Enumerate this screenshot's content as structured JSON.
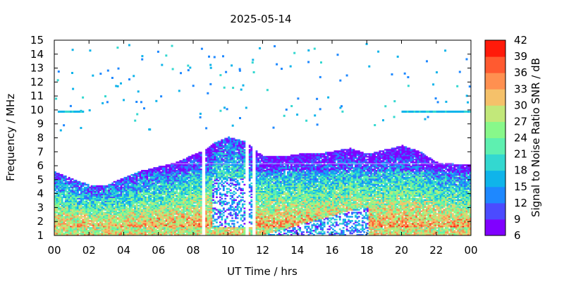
{
  "chart_data": {
    "type": "heatmap",
    "title": "2025-05-14",
    "xlabel": "UT Time / hrs",
    "ylabel": "Frequency / MHz",
    "colorbar_label": "Signal to Noise Ratio SNR / dB",
    "x_range": [
      0,
      24
    ],
    "y_range": [
      1,
      15
    ],
    "x_ticks": [
      "00",
      "02",
      "04",
      "06",
      "08",
      "10",
      "12",
      "14",
      "16",
      "18",
      "20",
      "22",
      "00"
    ],
    "y_ticks": [
      "1",
      "2",
      "3",
      "4",
      "5",
      "6",
      "7",
      "8",
      "9",
      "10",
      "11",
      "12",
      "13",
      "14",
      "15"
    ],
    "colorbar_ticks": [
      "6",
      "9",
      "12",
      "15",
      "18",
      "21",
      "24",
      "27",
      "30",
      "33",
      "36",
      "39",
      "42"
    ],
    "colorbar_range": [
      6,
      42
    ],
    "colorbar_colors": [
      "#8000ff",
      "#4b4bff",
      "#1e88ff",
      "#0fb4ea",
      "#33d8d0",
      "#5ef0b0",
      "#88f88a",
      "#c2e87a",
      "#f5c16a",
      "#ff9050",
      "#ff5a30",
      "#ff1a0a"
    ],
    "upper_envelope": [
      {
        "h": 0,
        "f": 5.5
      },
      {
        "h": 1,
        "f": 5.0
      },
      {
        "h": 2,
        "f": 4.6
      },
      {
        "h": 3,
        "f": 4.6
      },
      {
        "h": 4,
        "f": 5.1
      },
      {
        "h": 5,
        "f": 5.6
      },
      {
        "h": 6,
        "f": 5.9
      },
      {
        "h": 7,
        "f": 6.2
      },
      {
        "h": 8,
        "f": 6.8
      },
      {
        "h": 8.5,
        "f": 7.0
      },
      {
        "h": 9,
        "f": 7.5
      },
      {
        "h": 10,
        "f": 8.0
      },
      {
        "h": 11,
        "f": 7.7
      },
      {
        "h": 12,
        "f": 6.6
      },
      {
        "h": 13,
        "f": 6.6
      },
      {
        "h": 14,
        "f": 6.8
      },
      {
        "h": 15,
        "f": 6.8
      },
      {
        "h": 16,
        "f": 7.0
      },
      {
        "h": 17,
        "f": 7.2
      },
      {
        "h": 18,
        "f": 6.8
      },
      {
        "h": 19,
        "f": 7.1
      },
      {
        "h": 20,
        "f": 7.4
      },
      {
        "h": 21,
        "f": 7.0
      },
      {
        "h": 22,
        "f": 6.2
      },
      {
        "h": 23,
        "f": 6.1
      },
      {
        "h": 24,
        "f": 6.0
      }
    ],
    "gaps_hours": [
      [
        8.4,
        8.6
      ],
      [
        10.95,
        11.15
      ],
      [
        11.35,
        11.5
      ]
    ]
  }
}
